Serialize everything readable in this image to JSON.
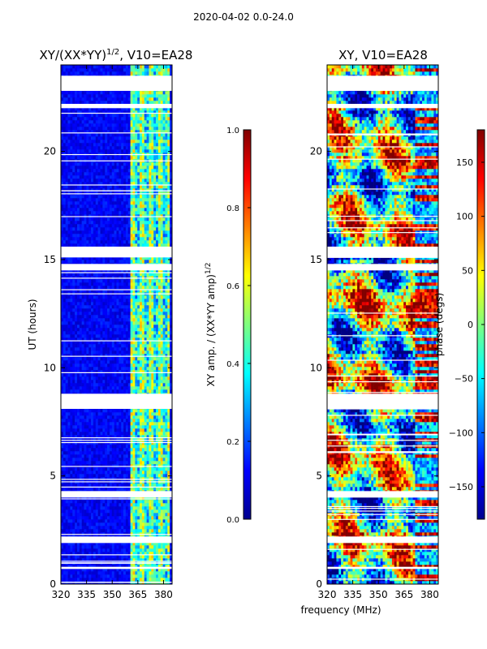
{
  "figure": {
    "suptitle": "2020-04-02 0.0-24.0",
    "shared_xlabel": "frequency (MHz)"
  },
  "chart_data": [
    {
      "type": "heatmap",
      "title_main": "XY/(XX*YY)",
      "title_sup": "1/2",
      "title_tail": ", V10=EA28",
      "ylabel": "UT (hours)",
      "xlim": [
        320,
        385
      ],
      "ylim": [
        0,
        24
      ],
      "xticks": [
        320,
        335,
        350,
        365,
        380
      ],
      "yticks": [
        0,
        5,
        10,
        15,
        20
      ],
      "colorbar": {
        "label_main": "XY amp. / (XX*YY amp)",
        "label_sup": "1/2",
        "range": [
          0.0,
          1.0
        ],
        "ticks": [
          "0.0",
          "0.2",
          "0.4",
          "0.6",
          "0.8",
          "1.0"
        ]
      },
      "hot_band_mhz": [
        361,
        383
      ],
      "flag_gaps_hours": [
        [
          22.8,
          23.5
        ],
        [
          22.0,
          22.2
        ],
        [
          15.1,
          15.6
        ],
        [
          14.5,
          14.8
        ],
        [
          8.1,
          8.8
        ],
        [
          4.0,
          4.3
        ],
        [
          1.9,
          2.2
        ],
        [
          0.7,
          0.8
        ]
      ]
    },
    {
      "type": "heatmap",
      "title_main": "XY, V10=EA28",
      "ylabel": "",
      "xlim": [
        320,
        385
      ],
      "ylim": [
        0,
        24
      ],
      "xticks": [
        320,
        335,
        350,
        365,
        380
      ],
      "yticks": [
        0,
        5,
        10,
        15,
        20
      ],
      "colorbar": {
        "label_main": "phase (degs)",
        "range": [
          -180,
          180
        ],
        "ticks": [
          "−150",
          "−100",
          "−50",
          "0",
          "50",
          "100",
          "150"
        ],
        "tick_values": [
          -150,
          -100,
          -50,
          0,
          50,
          100,
          150
        ]
      },
      "flag_gaps_hours": [
        [
          22.8,
          23.5
        ],
        [
          22.0,
          22.2
        ],
        [
          15.1,
          15.6
        ],
        [
          14.5,
          14.8
        ],
        [
          8.1,
          8.8
        ],
        [
          4.0,
          4.3
        ],
        [
          1.9,
          2.2
        ],
        [
          0.7,
          0.8
        ]
      ]
    }
  ]
}
